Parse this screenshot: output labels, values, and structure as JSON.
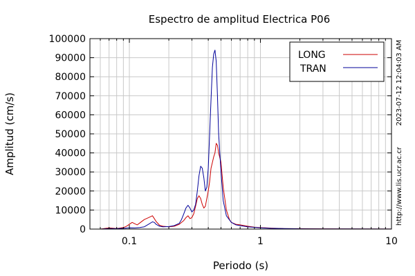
{
  "chart_data": {
    "type": "line",
    "title": "Espectro de amplitud Electrica P06",
    "xlabel": "Periodo (s)",
    "ylabel": "Amplitud (cm/s)",
    "x_scale": "log",
    "xlim": [
      0.05,
      10
    ],
    "ylim": [
      0,
      100000
    ],
    "x_ticks": [
      0.1,
      1,
      10
    ],
    "x_tick_labels": [
      "0.1",
      "1",
      "10"
    ],
    "y_ticks": [
      0,
      10000,
      20000,
      30000,
      40000,
      50000,
      60000,
      70000,
      80000,
      90000,
      100000
    ],
    "y_tick_labels": [
      "0",
      "10000",
      "20000",
      "30000",
      "40000",
      "50000",
      "60000",
      "70000",
      "80000",
      "90000",
      "100000"
    ],
    "grid": true,
    "legend_position": "top-right",
    "series": [
      {
        "name": "LONG",
        "color": "#cc0000",
        "points": [
          [
            0.06,
            0
          ],
          [
            0.07,
            600
          ],
          [
            0.08,
            300
          ],
          [
            0.09,
            800
          ],
          [
            0.095,
            1500
          ],
          [
            0.1,
            2500
          ],
          [
            0.105,
            3500
          ],
          [
            0.11,
            2800
          ],
          [
            0.115,
            2200
          ],
          [
            0.12,
            3200
          ],
          [
            0.13,
            5000
          ],
          [
            0.14,
            6000
          ],
          [
            0.15,
            7000
          ],
          [
            0.155,
            5500
          ],
          [
            0.16,
            4000
          ],
          [
            0.17,
            2000
          ],
          [
            0.18,
            1500
          ],
          [
            0.2,
            1200
          ],
          [
            0.22,
            1500
          ],
          [
            0.24,
            2500
          ],
          [
            0.26,
            4500
          ],
          [
            0.27,
            6000
          ],
          [
            0.28,
            7000
          ],
          [
            0.29,
            5500
          ],
          [
            0.3,
            6000
          ],
          [
            0.31,
            8000
          ],
          [
            0.32,
            12000
          ],
          [
            0.33,
            16000
          ],
          [
            0.34,
            17500
          ],
          [
            0.35,
            16000
          ],
          [
            0.36,
            13000
          ],
          [
            0.37,
            11000
          ],
          [
            0.38,
            12000
          ],
          [
            0.39,
            16000
          ],
          [
            0.4,
            20000
          ],
          [
            0.41,
            25000
          ],
          [
            0.42,
            32000
          ],
          [
            0.43,
            35000
          ],
          [
            0.44,
            38000
          ],
          [
            0.45,
            40000
          ],
          [
            0.46,
            45000
          ],
          [
            0.47,
            44000
          ],
          [
            0.48,
            40000
          ],
          [
            0.5,
            35000
          ],
          [
            0.52,
            22000
          ],
          [
            0.55,
            10000
          ],
          [
            0.58,
            5000
          ],
          [
            0.6,
            3500
          ],
          [
            0.65,
            2500
          ],
          [
            0.7,
            2200
          ],
          [
            0.8,
            1500
          ],
          [
            0.9,
            1000
          ],
          [
            1.0,
            800
          ],
          [
            1.2,
            500
          ],
          [
            1.5,
            300
          ],
          [
            2,
            200
          ],
          [
            3,
            150
          ],
          [
            5,
            100
          ],
          [
            10,
            50
          ]
        ]
      },
      {
        "name": "TRAN",
        "color": "#000099",
        "points": [
          [
            0.06,
            0
          ],
          [
            0.07,
            300
          ],
          [
            0.08,
            200
          ],
          [
            0.09,
            400
          ],
          [
            0.1,
            700
          ],
          [
            0.11,
            600
          ],
          [
            0.12,
            800
          ],
          [
            0.13,
            1200
          ],
          [
            0.14,
            2500
          ],
          [
            0.15,
            3800
          ],
          [
            0.155,
            3500
          ],
          [
            0.16,
            2500
          ],
          [
            0.17,
            1500
          ],
          [
            0.18,
            1200
          ],
          [
            0.2,
            1300
          ],
          [
            0.22,
            1800
          ],
          [
            0.24,
            3000
          ],
          [
            0.25,
            5000
          ],
          [
            0.26,
            8000
          ],
          [
            0.27,
            11000
          ],
          [
            0.28,
            12500
          ],
          [
            0.29,
            11000
          ],
          [
            0.3,
            9000
          ],
          [
            0.31,
            10000
          ],
          [
            0.32,
            13000
          ],
          [
            0.33,
            20000
          ],
          [
            0.34,
            28000
          ],
          [
            0.35,
            33000
          ],
          [
            0.36,
            32000
          ],
          [
            0.37,
            27000
          ],
          [
            0.38,
            20000
          ],
          [
            0.39,
            22000
          ],
          [
            0.4,
            32000
          ],
          [
            0.41,
            50000
          ],
          [
            0.42,
            68000
          ],
          [
            0.43,
            85000
          ],
          [
            0.44,
            92000
          ],
          [
            0.45,
            94000
          ],
          [
            0.46,
            88000
          ],
          [
            0.47,
            70000
          ],
          [
            0.48,
            50000
          ],
          [
            0.5,
            30000
          ],
          [
            0.52,
            15000
          ],
          [
            0.55,
            7000
          ],
          [
            0.6,
            3500
          ],
          [
            0.65,
            2200
          ],
          [
            0.7,
            1800
          ],
          [
            0.8,
            1200
          ],
          [
            0.9,
            900
          ],
          [
            1.0,
            700
          ],
          [
            1.2,
            400
          ],
          [
            1.5,
            250
          ],
          [
            2,
            150
          ],
          [
            3,
            100
          ],
          [
            5,
            80
          ],
          [
            10,
            40
          ]
        ]
      }
    ],
    "side_text_top": "2023-07-12 12:04:03 AM",
    "side_text_bottom": "http://www.lis.ucr.ac.cr"
  }
}
